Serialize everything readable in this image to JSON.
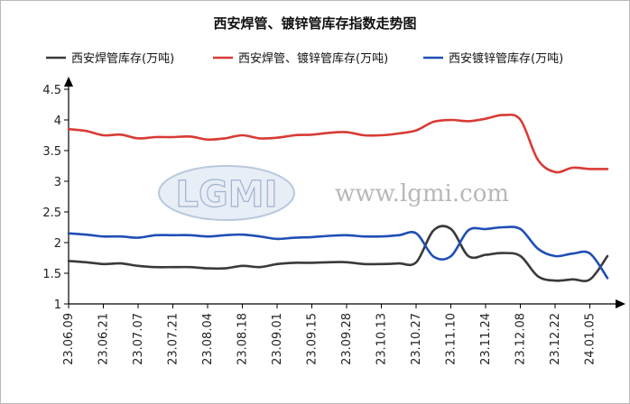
{
  "chart_data": {
    "type": "line",
    "title": "西安焊管、镀锌管库存指数走势图",
    "xlabel": "",
    "ylabel": "",
    "ylim": [
      1,
      4.5
    ],
    "yticks": [
      "1",
      "1.5",
      "2",
      "2.5",
      "3",
      "3.5",
      "4",
      "4.5"
    ],
    "x_tick_labels": [
      "23.06.09",
      "23.06.21",
      "23.07.07",
      "23.07.21",
      "23.08.04",
      "23.08.18",
      "23.09.01",
      "23.09.15",
      "23.09.28",
      "23.10.13",
      "23.10.27",
      "23.11.10",
      "23.11.24",
      "23.12.08",
      "23.12.22",
      "24.01.05"
    ],
    "legend_position": "top",
    "grid": false,
    "series": [
      {
        "name": "西安焊管库存(万吨)",
        "color": "#3a3a3a",
        "values": [
          1.7,
          1.68,
          1.65,
          1.66,
          1.62,
          1.6,
          1.6,
          1.6,
          1.58,
          1.58,
          1.62,
          1.6,
          1.65,
          1.67,
          1.67,
          1.68,
          1.68,
          1.65,
          1.65,
          1.66,
          1.68,
          2.2,
          2.22,
          1.78,
          1.8,
          1.83,
          1.78,
          1.45,
          1.38,
          1.4,
          1.4,
          1.78
        ]
      },
      {
        "name": "西安焊管、镀锌管库存(万吨)",
        "color": "#d83b35",
        "values": [
          3.85,
          3.82,
          3.75,
          3.76,
          3.7,
          3.72,
          3.72,
          3.73,
          3.68,
          3.7,
          3.75,
          3.7,
          3.71,
          3.75,
          3.76,
          3.79,
          3.8,
          3.75,
          3.75,
          3.78,
          3.83,
          3.97,
          4.0,
          3.98,
          4.02,
          4.08,
          4.0,
          3.35,
          3.15,
          3.22,
          3.2,
          3.2
        ]
      },
      {
        "name": "西安镀锌管库存(万吨)",
        "color": "#1f4fb5",
        "values": [
          2.15,
          2.13,
          2.1,
          2.1,
          2.08,
          2.12,
          2.12,
          2.12,
          2.1,
          2.12,
          2.13,
          2.1,
          2.06,
          2.08,
          2.09,
          2.11,
          2.12,
          2.1,
          2.1,
          2.12,
          2.15,
          1.77,
          1.78,
          2.2,
          2.22,
          2.25,
          2.22,
          1.9,
          1.78,
          1.82,
          1.82,
          1.42
        ]
      }
    ]
  },
  "watermark": {
    "logo": "LGMI",
    "url": "www.lgmi.com"
  }
}
